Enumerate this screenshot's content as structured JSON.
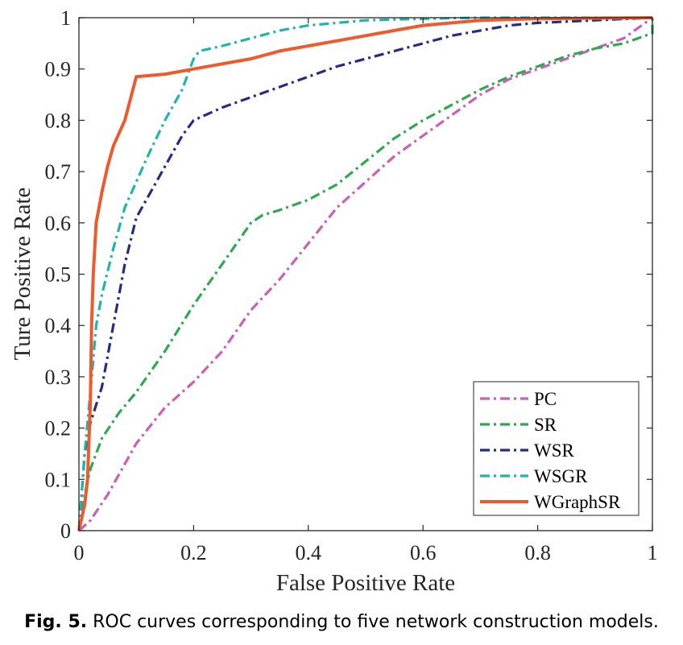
{
  "chart_data": {
    "type": "line",
    "title": "",
    "xlabel": "False Positive Rate",
    "ylabel": "Ture Positive Rate",
    "xlim": [
      0,
      1
    ],
    "ylim": [
      0,
      1
    ],
    "x_ticks": [
      "0",
      "0.2",
      "0.4",
      "0.6",
      "0.8",
      "1"
    ],
    "y_ticks": [
      "0",
      "0.1",
      "0.2",
      "0.3",
      "0.4",
      "0.5",
      "0.6",
      "0.7",
      "0.8",
      "0.9",
      "1"
    ],
    "grid": false,
    "legend_position": "bottom-right",
    "series": [
      {
        "name": "PC",
        "color": "#cc5fb3",
        "style": "dashdot",
        "points": [
          [
            0,
            0
          ],
          [
            0.02,
            0.02
          ],
          [
            0.05,
            0.07
          ],
          [
            0.1,
            0.17
          ],
          [
            0.15,
            0.24
          ],
          [
            0.2,
            0.29
          ],
          [
            0.25,
            0.35
          ],
          [
            0.3,
            0.43
          ],
          [
            0.35,
            0.49
          ],
          [
            0.4,
            0.56
          ],
          [
            0.45,
            0.63
          ],
          [
            0.5,
            0.68
          ],
          [
            0.55,
            0.73
          ],
          [
            0.6,
            0.77
          ],
          [
            0.65,
            0.81
          ],
          [
            0.7,
            0.85
          ],
          [
            0.75,
            0.88
          ],
          [
            0.8,
            0.9
          ],
          [
            0.85,
            0.92
          ],
          [
            0.9,
            0.94
          ],
          [
            0.95,
            0.96
          ],
          [
            1,
            1
          ]
        ]
      },
      {
        "name": "SR",
        "color": "#2fa84f",
        "style": "dashdot",
        "points": [
          [
            0,
            0
          ],
          [
            0.01,
            0.07
          ],
          [
            0.02,
            0.12
          ],
          [
            0.04,
            0.18
          ],
          [
            0.07,
            0.23
          ],
          [
            0.1,
            0.27
          ],
          [
            0.15,
            0.35
          ],
          [
            0.2,
            0.44
          ],
          [
            0.25,
            0.52
          ],
          [
            0.3,
            0.6
          ],
          [
            0.32,
            0.615
          ],
          [
            0.35,
            0.625
          ],
          [
            0.4,
            0.645
          ],
          [
            0.45,
            0.675
          ],
          [
            0.5,
            0.72
          ],
          [
            0.55,
            0.765
          ],
          [
            0.6,
            0.8
          ],
          [
            0.65,
            0.83
          ],
          [
            0.7,
            0.86
          ],
          [
            0.75,
            0.885
          ],
          [
            0.8,
            0.905
          ],
          [
            0.85,
            0.925
          ],
          [
            0.9,
            0.94
          ],
          [
            0.95,
            0.95
          ],
          [
            1,
            0.97
          ],
          [
            1,
            1
          ]
        ]
      },
      {
        "name": "WSR",
        "color": "#262c86",
        "style": "dashdot",
        "points": [
          [
            0,
            0
          ],
          [
            0.01,
            0.15
          ],
          [
            0.02,
            0.21
          ],
          [
            0.04,
            0.28
          ],
          [
            0.06,
            0.4
          ],
          [
            0.08,
            0.52
          ],
          [
            0.1,
            0.61
          ],
          [
            0.13,
            0.67
          ],
          [
            0.16,
            0.73
          ],
          [
            0.18,
            0.77
          ],
          [
            0.2,
            0.8
          ],
          [
            0.25,
            0.825
          ],
          [
            0.3,
            0.845
          ],
          [
            0.35,
            0.865
          ],
          [
            0.4,
            0.885
          ],
          [
            0.45,
            0.905
          ],
          [
            0.5,
            0.92
          ],
          [
            0.55,
            0.935
          ],
          [
            0.6,
            0.95
          ],
          [
            0.65,
            0.965
          ],
          [
            0.7,
            0.975
          ],
          [
            0.75,
            0.985
          ],
          [
            0.8,
            0.99
          ],
          [
            0.9,
            0.995
          ],
          [
            1,
            1
          ]
        ]
      },
      {
        "name": "WSGR",
        "color": "#1fb5ac",
        "style": "dashdot",
        "points": [
          [
            0,
            0
          ],
          [
            0.01,
            0.15
          ],
          [
            0.02,
            0.27
          ],
          [
            0.03,
            0.4
          ],
          [
            0.04,
            0.46
          ],
          [
            0.06,
            0.55
          ],
          [
            0.08,
            0.63
          ],
          [
            0.1,
            0.68
          ],
          [
            0.12,
            0.73
          ],
          [
            0.15,
            0.8
          ],
          [
            0.18,
            0.86
          ],
          [
            0.2,
            0.92
          ],
          [
            0.21,
            0.935
          ],
          [
            0.25,
            0.945
          ],
          [
            0.3,
            0.96
          ],
          [
            0.35,
            0.975
          ],
          [
            0.4,
            0.985
          ],
          [
            0.45,
            0.99
          ],
          [
            0.5,
            0.995
          ],
          [
            0.6,
            0.998
          ],
          [
            0.7,
            1
          ],
          [
            1,
            1
          ]
        ]
      },
      {
        "name": "WGraphSR",
        "color": "#ee5a2b",
        "style": "solid",
        "points": [
          [
            0,
            0
          ],
          [
            0.01,
            0.05
          ],
          [
            0.015,
            0.1
          ],
          [
            0.02,
            0.25
          ],
          [
            0.022,
            0.4
          ],
          [
            0.025,
            0.5
          ],
          [
            0.03,
            0.6
          ],
          [
            0.04,
            0.66
          ],
          [
            0.05,
            0.71
          ],
          [
            0.06,
            0.75
          ],
          [
            0.08,
            0.8
          ],
          [
            0.1,
            0.885
          ],
          [
            0.15,
            0.89
          ],
          [
            0.2,
            0.9
          ],
          [
            0.25,
            0.91
          ],
          [
            0.3,
            0.92
          ],
          [
            0.35,
            0.935
          ],
          [
            0.4,
            0.945
          ],
          [
            0.45,
            0.955
          ],
          [
            0.5,
            0.965
          ],
          [
            0.55,
            0.975
          ],
          [
            0.6,
            0.985
          ],
          [
            0.65,
            0.99
          ],
          [
            0.7,
            0.995
          ],
          [
            0.8,
            0.998
          ],
          [
            1,
            1
          ]
        ]
      }
    ]
  },
  "caption": {
    "label": "Fig. 5.",
    "text": "ROC curves corresponding to five network construction models."
  }
}
